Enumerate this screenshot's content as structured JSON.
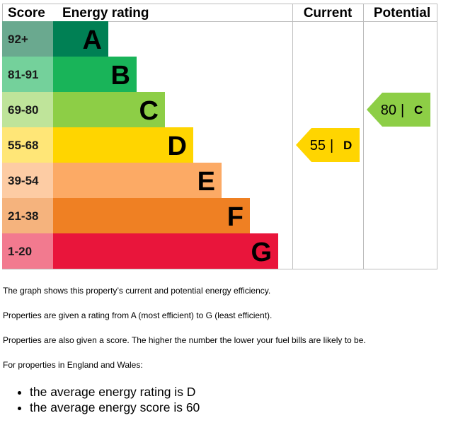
{
  "chart_data": {
    "type": "bar",
    "headers": {
      "score": "Score",
      "rating": "Energy rating",
      "current": "Current",
      "potential": "Potential"
    },
    "bands": [
      {
        "letter": "A",
        "range": "92+",
        "min": 92,
        "max": 100,
        "color": "#008054",
        "score_bg": "#6aa98f"
      },
      {
        "letter": "B",
        "range": "81-91",
        "min": 81,
        "max": 91,
        "color": "#19b459",
        "score_bg": "#74d19b"
      },
      {
        "letter": "C",
        "range": "69-80",
        "min": 69,
        "max": 80,
        "color": "#8dce46",
        "score_bg": "#bfe49a"
      },
      {
        "letter": "D",
        "range": "55-68",
        "min": 55,
        "max": 68,
        "color": "#ffd500",
        "score_bg": "#ffe677"
      },
      {
        "letter": "E",
        "range": "39-54",
        "min": 39,
        "max": 54,
        "color": "#fcaa65",
        "score_bg": "#fdcca4"
      },
      {
        "letter": "F",
        "range": "21-38",
        "min": 21,
        "max": 38,
        "color": "#ef8023",
        "score_bg": "#f5b37d"
      },
      {
        "letter": "G",
        "range": "1-20",
        "min": 1,
        "max": 20,
        "color": "#e9153b",
        "score_bg": "#f27a8f"
      }
    ],
    "current": {
      "score": 55,
      "score_text": "55",
      "rating": "D",
      "color": "#ffd500"
    },
    "potential": {
      "score": 80,
      "score_text": "80",
      "rating": "C",
      "color": "#8dce46"
    }
  },
  "text": {
    "p1": "The graph shows this property’s current and potential energy efficiency.",
    "p2": "Properties are given a rating from A (most efficient) to G (least efficient).",
    "p3": "Properties are also given a score. The higher the number the lower your fuel bills are likely to be.",
    "p4": "For properties in England and Wales:",
    "bullets": [
      "the average energy rating is D",
      "the average energy score is 60"
    ]
  }
}
